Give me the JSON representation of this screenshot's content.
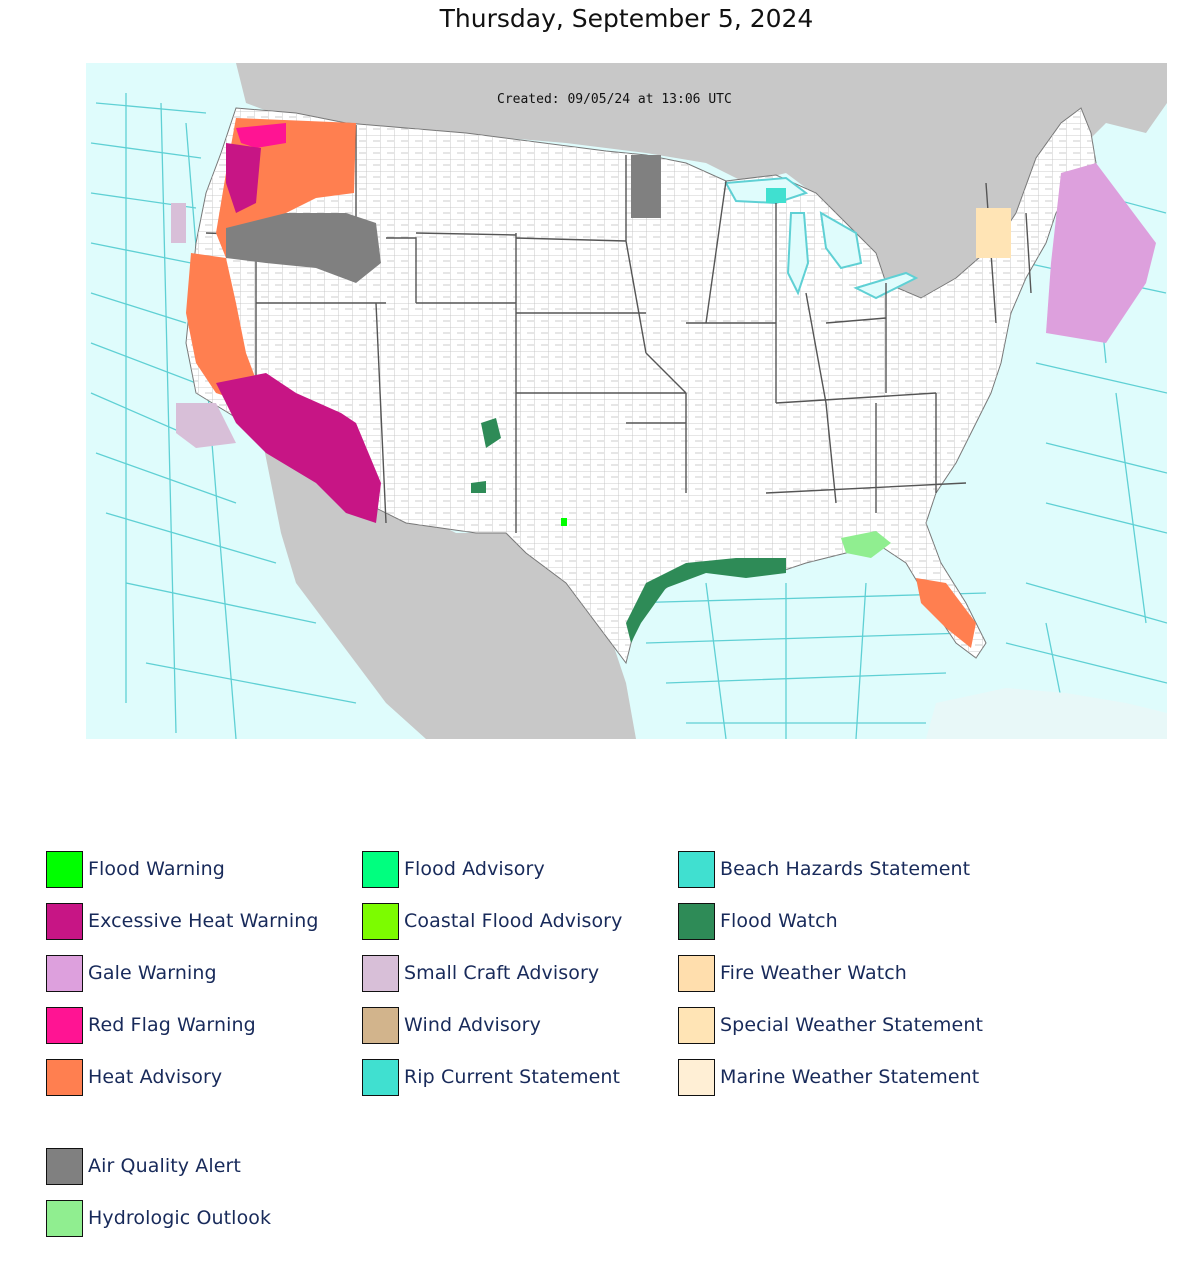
{
  "title": "Thursday, September 5, 2024",
  "map": {
    "created_label": "Created: 09/05/24 at 13:06 UTC",
    "colors": {
      "ocean": "#dffcfc",
      "land_foreign": "#c8c8c8",
      "land_us": "#ffffff",
      "marine_zone_lines": "#5fd0d4",
      "county_lines": "#b9b9b9",
      "state_lines": "#555555"
    }
  },
  "legend": {
    "columns": [
      [
        {
          "label": "Flood Warning",
          "color": "#00ff00"
        },
        {
          "label": "Excessive Heat Warning",
          "color": "#c71585"
        },
        {
          "label": "Gale Warning",
          "color": "#dda0dd"
        },
        {
          "label": "Red Flag Warning",
          "color": "#ff1493"
        },
        {
          "label": "Heat Advisory",
          "color": "#ff7f50"
        }
      ],
      [
        {
          "label": "Flood Advisory",
          "color": "#00ff7f"
        },
        {
          "label": "Coastal Flood Advisory",
          "color": "#7cfc00"
        },
        {
          "label": "Small Craft Advisory",
          "color": "#d8bfd8"
        },
        {
          "label": "Wind Advisory",
          "color": "#d2b48c"
        },
        {
          "label": "Rip Current Statement",
          "color": "#40e0d0"
        }
      ],
      [
        {
          "label": "Beach Hazards Statement",
          "color": "#40e0d0"
        },
        {
          "label": "Flood Watch",
          "color": "#2e8b57"
        },
        {
          "label": "Fire Weather Watch",
          "color": "#ffdead"
        },
        {
          "label": "Special Weather Statement",
          "color": "#ffe4b5"
        },
        {
          "label": "Marine Weather Statement",
          "color": "#ffefd5"
        }
      ]
    ],
    "extra": [
      {
        "label": "Air Quality Alert",
        "color": "#808080"
      },
      {
        "label": "Hydrologic Outlook",
        "color": "#90ee90"
      }
    ]
  }
}
